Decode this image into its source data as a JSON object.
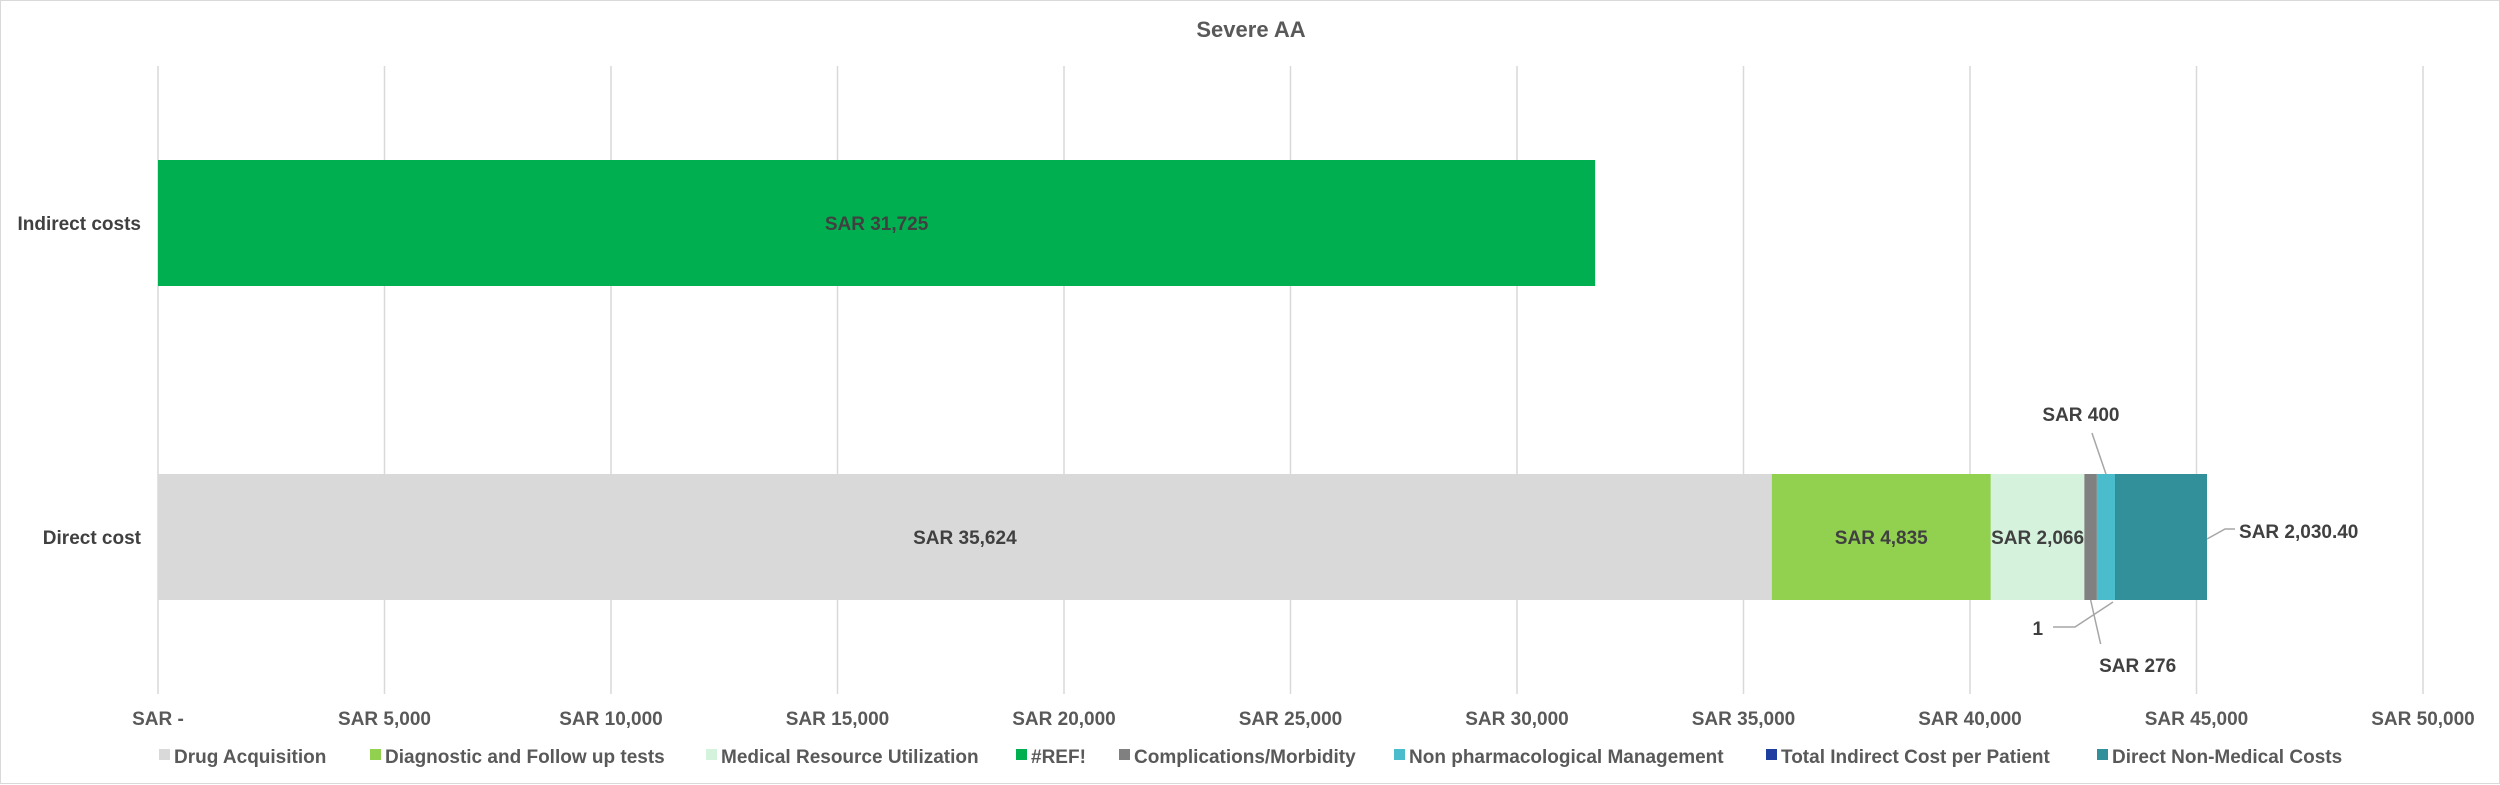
{
  "chart_data": {
    "type": "bar",
    "orientation": "horizontal",
    "stacked": true,
    "title": "Severe AA",
    "categories": [
      "Indirect costs",
      "Direct cost"
    ],
    "x_ticks": [
      "SAR -",
      "SAR 5,000",
      "SAR 10,000",
      "SAR 15,000",
      "SAR 20,000",
      "SAR 25,000",
      "SAR 30,000",
      "SAR 35,000",
      "SAR 40,000",
      "SAR 45,000",
      "SAR 50,000"
    ],
    "xlim": [
      0,
      50000
    ],
    "x_tick_step": 5000,
    "grid": "vertical",
    "legend_position": "bottom",
    "series": [
      {
        "name": "Drug Acquisition",
        "color": "#d9d9d9",
        "values": [
          0,
          35624
        ],
        "labels": [
          "",
          "SAR 35,624"
        ],
        "label_pos": [
          "",
          "center"
        ]
      },
      {
        "name": "Diagnostic and Follow up tests",
        "color": "#92d050",
        "values": [
          0,
          4835
        ],
        "labels": [
          "",
          "SAR 4,835"
        ],
        "label_pos": [
          "",
          "center"
        ]
      },
      {
        "name": "Medical Resource Utilization",
        "color": "#d5f2dc",
        "values": [
          0,
          2066
        ],
        "labels": [
          "",
          "SAR 2,066"
        ],
        "label_pos": [
          "",
          "center"
        ]
      },
      {
        "name": "#REF!",
        "color": "#00b050",
        "values": [
          31725,
          0
        ],
        "labels": [
          "SAR 31,725",
          ""
        ],
        "label_pos": [
          "center",
          ""
        ]
      },
      {
        "name": "Complications/Morbidity",
        "color": "#808080",
        "values": [
          0,
          276
        ],
        "labels": [
          "",
          "SAR 276"
        ],
        "label_pos": [
          "",
          "below"
        ]
      },
      {
        "name": "Non pharmacological Management",
        "color": "#4bbccc",
        "values": [
          0,
          400
        ],
        "labels": [
          "",
          "SAR 400"
        ],
        "label_pos": [
          "",
          "above"
        ]
      },
      {
        "name": "Total Indirect Cost per Patient",
        "color": "#1f3fa0",
        "values": [
          0,
          1
        ],
        "labels": [
          "",
          "1"
        ],
        "label_pos": [
          "",
          "below-left"
        ]
      },
      {
        "name": "Direct Non-Medical Costs",
        "color": "#31909a",
        "values": [
          0,
          2030.4
        ],
        "labels": [
          "",
          "SAR 2,030.40"
        ],
        "label_pos": [
          "",
          "right"
        ]
      }
    ]
  }
}
